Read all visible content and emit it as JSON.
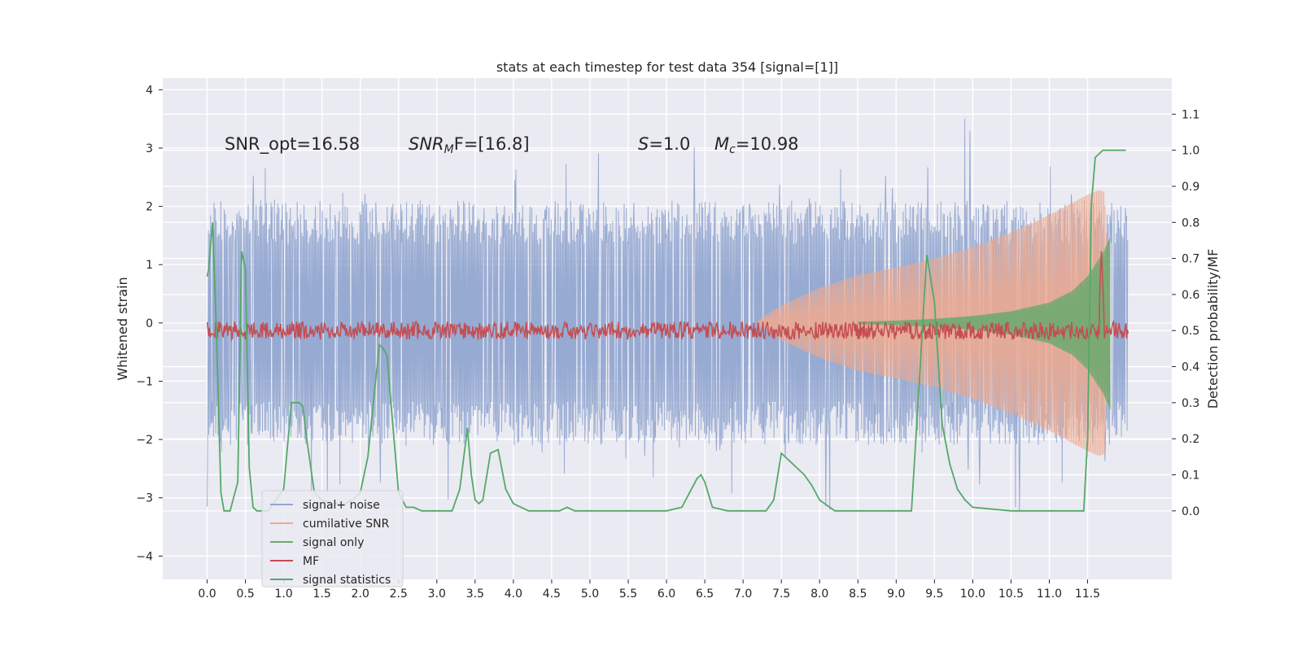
{
  "chart_data": {
    "type": "line",
    "title": "stats at each timestep for test data 354 [signal=[1]]",
    "xlabel": "",
    "ylabel": "Whitened strain",
    "y2label": "Detection probability/MF",
    "xlim": [
      -0.58,
      12.6
    ],
    "ylim": [
      -4.4,
      4.2
    ],
    "y2lim": [
      -0.19,
      1.2
    ],
    "xticks": [
      "0.0",
      "0.5",
      "1.0",
      "1.5",
      "2.0",
      "2.5",
      "3.0",
      "3.5",
      "4.0",
      "4.5",
      "5.0",
      "5.5",
      "6.0",
      "6.5",
      "7.0",
      "7.5",
      "8.0",
      "8.5",
      "9.0",
      "9.5",
      "10.0",
      "10.5",
      "11.0",
      "11.5"
    ],
    "yticks": [
      "4",
      "3",
      "2",
      "1",
      "0",
      "−1",
      "−2",
      "−3",
      "−4"
    ],
    "y2ticks": [
      "1.1",
      "1.0",
      "0.9",
      "0.8",
      "0.7",
      "0.6",
      "0.5",
      "0.4",
      "0.3",
      "0.2",
      "0.1",
      "0.0"
    ],
    "annotations": {
      "snr_opt": "SNR_opt=16.58",
      "snr_mf_main": "SNR",
      "snr_mf_sub": "M",
      "snr_mf_rest": "F=[16.8]",
      "s_main": "S",
      "s_rest": "=1.0",
      "mc_main": "M",
      "mc_sub": "c",
      "mc_rest": "=10.98"
    },
    "legend_position": "lower-left",
    "series": [
      {
        "name": "signal+ noise",
        "color": "#92a7d0",
        "noise_std": 1.0,
        "x_range": [
          0.0,
          12.03
        ]
      },
      {
        "name": "cumilative SNR",
        "color": "#eeaa8f",
        "envelope_x": [
          7.2,
          7.5,
          8.0,
          8.5,
          9.0,
          9.5,
          10.0,
          10.5,
          11.0,
          11.5,
          11.65,
          11.72,
          11.8
        ],
        "envelope_y": [
          0.05,
          0.3,
          0.6,
          0.82,
          0.95,
          1.1,
          1.3,
          1.55,
          1.85,
          2.2,
          2.28,
          2.25,
          -0.1
        ]
      },
      {
        "name": "signal only",
        "color": "#6fa870",
        "envelope_x": [
          8.5,
          9.0,
          9.5,
          10.0,
          10.5,
          11.0,
          11.3,
          11.5,
          11.7,
          11.8
        ],
        "envelope_y": [
          0.02,
          0.04,
          0.07,
          0.12,
          0.2,
          0.35,
          0.55,
          0.8,
          1.2,
          1.5
        ]
      },
      {
        "name": "MF",
        "color": "#c44e52",
        "baseline": 0.5,
        "peak_x": 11.68,
        "peak_value": 0.72
      },
      {
        "name": "signal statistics",
        "color": "#55a868",
        "x": [
          0.0,
          0.02,
          0.07,
          0.12,
          0.18,
          0.22,
          0.3,
          0.4,
          0.45,
          0.5,
          0.55,
          0.6,
          0.65,
          0.7,
          0.8,
          1.0,
          1.1,
          1.2,
          1.25,
          1.3,
          1.4,
          1.45,
          1.5,
          1.6,
          1.7,
          1.8,
          1.9,
          2.0,
          2.1,
          2.2,
          2.25,
          2.3,
          2.35,
          2.4,
          2.5,
          2.6,
          2.7,
          2.8,
          3.0,
          3.2,
          3.3,
          3.4,
          3.45,
          3.5,
          3.55,
          3.6,
          3.7,
          3.8,
          3.9,
          4.0,
          4.2,
          4.6,
          4.7,
          4.8,
          5.5,
          6.0,
          6.2,
          6.3,
          6.4,
          6.45,
          6.5,
          6.6,
          6.8,
          7.0,
          7.3,
          7.4,
          7.5,
          7.6,
          7.7,
          7.8,
          7.9,
          8.0,
          8.2,
          9.0,
          9.2,
          9.3,
          9.4,
          9.5,
          9.6,
          9.7,
          9.8,
          9.9,
          10.0,
          10.5,
          11.0,
          11.3,
          11.4,
          11.45,
          11.5,
          11.55,
          11.6,
          11.7,
          11.8,
          12.0
        ],
        "y": [
          0.65,
          0.67,
          0.8,
          0.5,
          0.05,
          0.0,
          0.0,
          0.08,
          0.72,
          0.67,
          0.12,
          0.01,
          0.0,
          0.0,
          0.0,
          0.06,
          0.3,
          0.3,
          0.29,
          0.2,
          0.05,
          0.04,
          0.03,
          0.02,
          0.02,
          0.02,
          0.03,
          0.05,
          0.15,
          0.36,
          0.46,
          0.45,
          0.43,
          0.3,
          0.05,
          0.01,
          0.01,
          0.0,
          0.0,
          0.0,
          0.06,
          0.23,
          0.1,
          0.03,
          0.02,
          0.03,
          0.16,
          0.17,
          0.06,
          0.02,
          0.0,
          0.0,
          0.01,
          0.0,
          0.0,
          0.0,
          0.01,
          0.05,
          0.09,
          0.1,
          0.08,
          0.01,
          0.0,
          0.0,
          0.0,
          0.03,
          0.16,
          0.14,
          0.12,
          0.1,
          0.07,
          0.03,
          0.0,
          0.0,
          0.0,
          0.35,
          0.71,
          0.58,
          0.24,
          0.13,
          0.06,
          0.03,
          0.01,
          0.0,
          0.0,
          0.0,
          0.0,
          0.0,
          0.2,
          0.85,
          0.98,
          1.0,
          1.0,
          1.0
        ]
      }
    ]
  }
}
